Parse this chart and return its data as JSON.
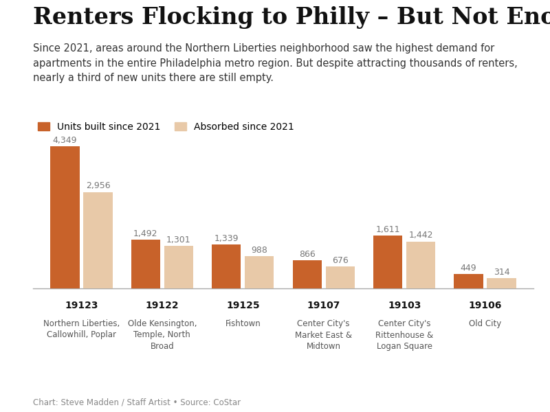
{
  "title": "Renters Flocking to Philly – But Not Enough",
  "subtitle": "Since 2021, areas around the Northern Liberties neighborhood saw the highest demand for\napartments in the entire Philadelphia metro region. But despite attracting thousands of renters,\nnearly a third of new units there are still empty.",
  "footnote": "Chart: Steve Madden / Staff Artist • Source: CoStar",
  "legend": [
    "Units built since 2021",
    "Absorbed since 2021"
  ],
  "legend_colors": [
    "#c8622a",
    "#e8c9a8"
  ],
  "zipcodes": [
    "19123",
    "19122",
    "19125",
    "19107",
    "19103",
    "19106"
  ],
  "neighborhood_lines": [
    "Northern Liberties,\nCallowhill, Poplar",
    "Olde Kensington,\nTemple, North\nBroad",
    "Fishtown",
    "Center City's\nMarket East &\nMidtown",
    "Center City's\nRittenhouse &\nLogan Square",
    "Old City"
  ],
  "built": [
    4349,
    1492,
    1339,
    866,
    1611,
    449
  ],
  "absorbed": [
    2956,
    1301,
    988,
    676,
    1442,
    314
  ],
  "bar_color_built": "#c8622a",
  "bar_color_absorbed": "#e8c9a8",
  "bar_width": 0.36,
  "bar_gap": 0.05,
  "ylim": [
    0,
    4800
  ],
  "background_color": "#ffffff",
  "title_fontsize": 24,
  "subtitle_fontsize": 10.5,
  "label_fontsize": 9,
  "zipcode_fontsize": 10,
  "neighborhood_fontsize": 8.5,
  "legend_fontsize": 10,
  "footnote_fontsize": 8.5
}
